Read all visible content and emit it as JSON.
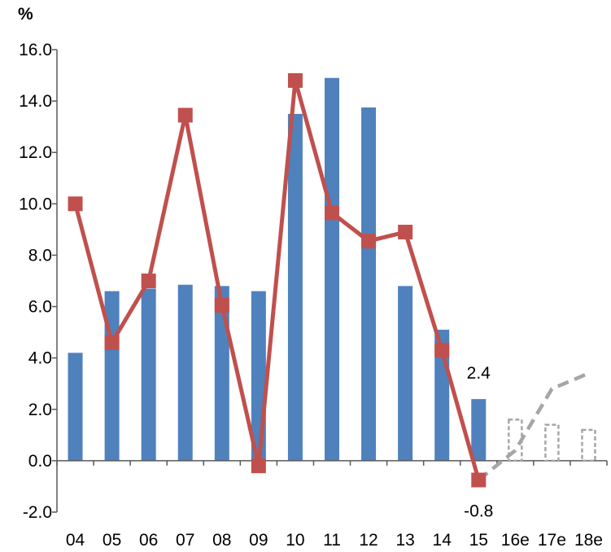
{
  "chart_data": {
    "type": "bar",
    "title": "",
    "ylabel": "%",
    "xlabel": "",
    "categories": [
      "04",
      "05",
      "06",
      "07",
      "08",
      "09",
      "10",
      "11",
      "12",
      "13",
      "14",
      "15",
      "16e",
      "17e",
      "18e"
    ],
    "ylim": [
      -2.0,
      16.0
    ],
    "yticks": [
      "-2.0",
      "0.0",
      "2.0",
      "4.0",
      "6.0",
      "8.0",
      "10.0",
      "12.0",
      "14.0",
      "16.0"
    ],
    "grid": false,
    "legend": "none",
    "series": [
      {
        "kind": "bar",
        "color": "#4f81bd",
        "values": [
          4.2,
          6.6,
          6.7,
          6.85,
          6.8,
          6.6,
          13.5,
          14.9,
          13.75,
          6.8,
          5.1,
          2.4,
          null,
          null,
          null
        ]
      },
      {
        "kind": "bar-forecast",
        "style": "dashed-outline",
        "color": "#a6a6a6",
        "values": [
          null,
          null,
          null,
          null,
          null,
          null,
          null,
          null,
          null,
          null,
          null,
          null,
          1.6,
          1.4,
          1.2
        ]
      },
      {
        "kind": "line",
        "marker": "square",
        "color": "#c0504d",
        "values": [
          10.0,
          4.6,
          7.0,
          13.45,
          6.05,
          -0.2,
          14.8,
          9.65,
          8.55,
          8.9,
          4.3,
          -0.75,
          null,
          null,
          null
        ]
      },
      {
        "kind": "line-forecast",
        "style": "dashed",
        "color": "#a6a6a6",
        "values": [
          null,
          null,
          null,
          null,
          null,
          null,
          null,
          null,
          null,
          null,
          null,
          -0.75,
          0.4,
          2.8,
          3.4
        ]
      }
    ],
    "annotations": [
      {
        "text": "2.4"
      },
      {
        "text": "-0.8"
      }
    ]
  }
}
